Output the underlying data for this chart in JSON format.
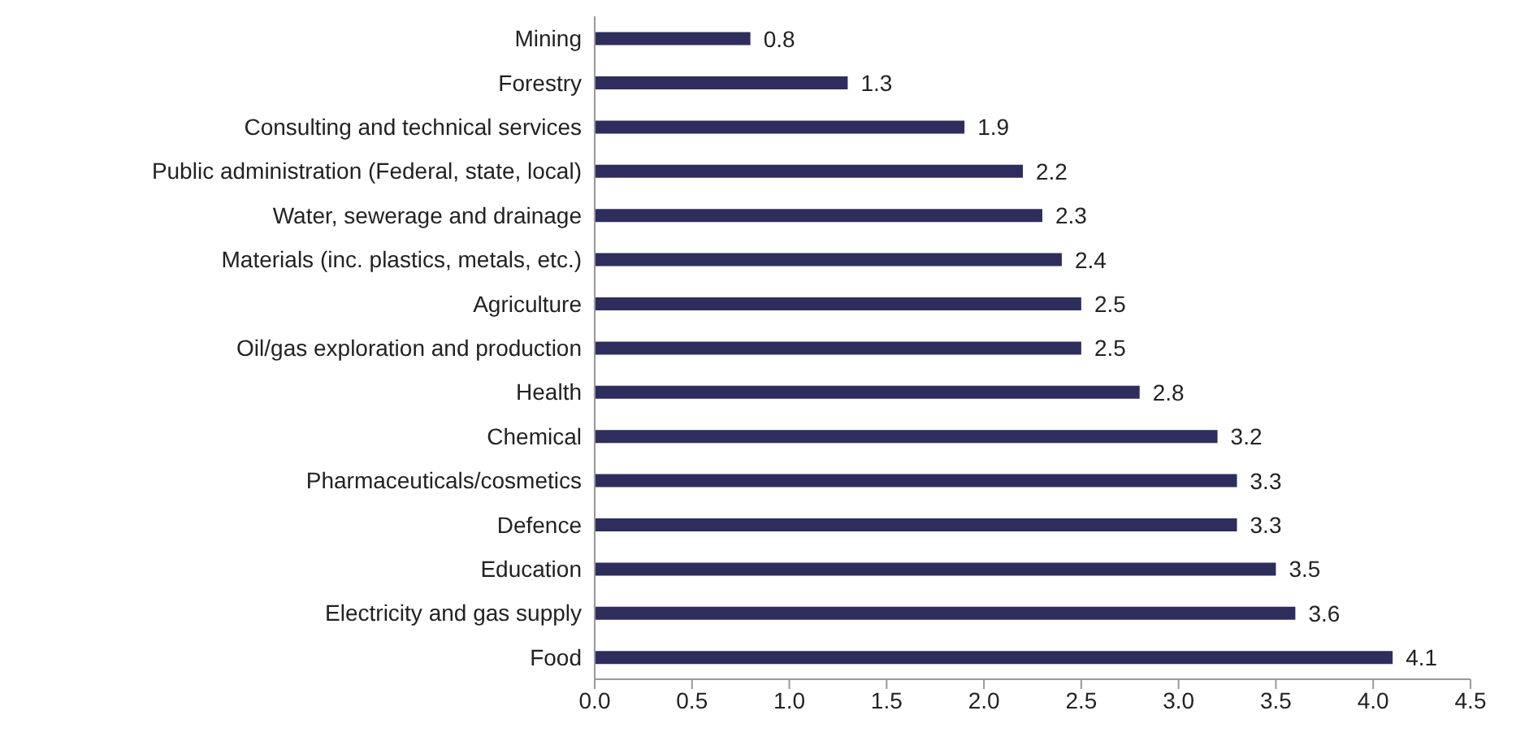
{
  "chart_data": {
    "type": "bar",
    "orientation": "horizontal",
    "categories": [
      "Mining",
      "Forestry",
      "Consulting and technical services",
      "Public administration (Federal, state, local)",
      "Water, sewerage and drainage",
      "Materials (inc. plastics, metals, etc.)",
      "Agriculture",
      "Oil/gas exploration and production",
      "Health",
      "Chemical",
      "Pharmaceuticals/cosmetics",
      "Defence",
      "Education",
      "Electricity and gas supply",
      "Food"
    ],
    "values": [
      0.8,
      1.3,
      1.9,
      2.2,
      2.3,
      2.4,
      2.5,
      2.5,
      2.8,
      3.2,
      3.3,
      3.3,
      3.5,
      3.6,
      4.1
    ],
    "color": "#2e2d5e",
    "xlim": [
      0,
      4.5
    ],
    "xticks": [
      "0.0",
      "0.5",
      "1.0",
      "1.5",
      "2.0",
      "2.5",
      "3.0",
      "3.5",
      "4.0",
      "4.5"
    ],
    "data_labels": true,
    "grid": false,
    "legend": false
  }
}
